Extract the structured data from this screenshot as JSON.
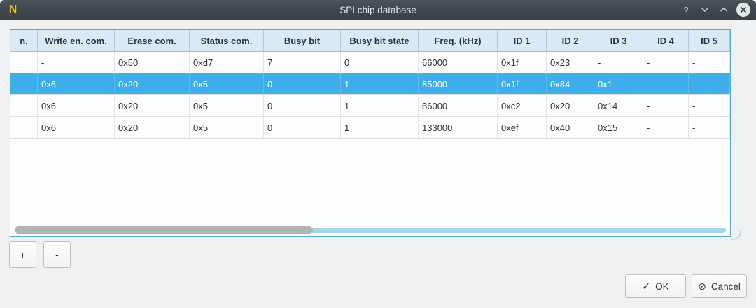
{
  "window": {
    "title": "SPI chip database"
  },
  "titlebar": {
    "help_glyph": "?"
  },
  "table": {
    "columns": [
      "n.",
      "Write en. com.",
      "Erase com.",
      "Status com.",
      "Busy bit",
      "Busy bit state",
      "Freq. (kHz)",
      "ID 1",
      "ID 2",
      "ID 3",
      "ID 4",
      "ID 5"
    ],
    "rows": [
      [
        "",
        "-",
        "0x50",
        "0xd7",
        "7",
        "0",
        "66000",
        "0x1f",
        "0x23",
        "-",
        "-",
        "-"
      ],
      [
        "",
        "0x6",
        "0x20",
        "0x5",
        "0",
        "1",
        "85000",
        "0x1f",
        "0x84",
        "0x1",
        "-",
        "-"
      ],
      [
        "",
        "0x6",
        "0x20",
        "0x5",
        "0",
        "1",
        "86000",
        "0xc2",
        "0x20",
        "0x14",
        "-",
        "-"
      ],
      [
        "",
        "0x6",
        "0x20",
        "0x5",
        "0",
        "1",
        "133000",
        "0xef",
        "0x40",
        "0x15",
        "-",
        "-"
      ]
    ],
    "selected_row_index": 1
  },
  "footer": {
    "add": "+",
    "remove": "-",
    "ok": "OK",
    "cancel": "Cancel",
    "ok_icon": "✓",
    "cancel_icon": "⊘"
  },
  "colors": {
    "accent_selection": "#3daee9",
    "titlebar": "#3e474d",
    "header_bg": "#d9eaf6",
    "table_border": "#55a7cd",
    "scrollbar_thumb": "#b2b4b5",
    "scrollbar_track": "#a4d6ea",
    "app_icon_yellow": "#eec40f"
  }
}
